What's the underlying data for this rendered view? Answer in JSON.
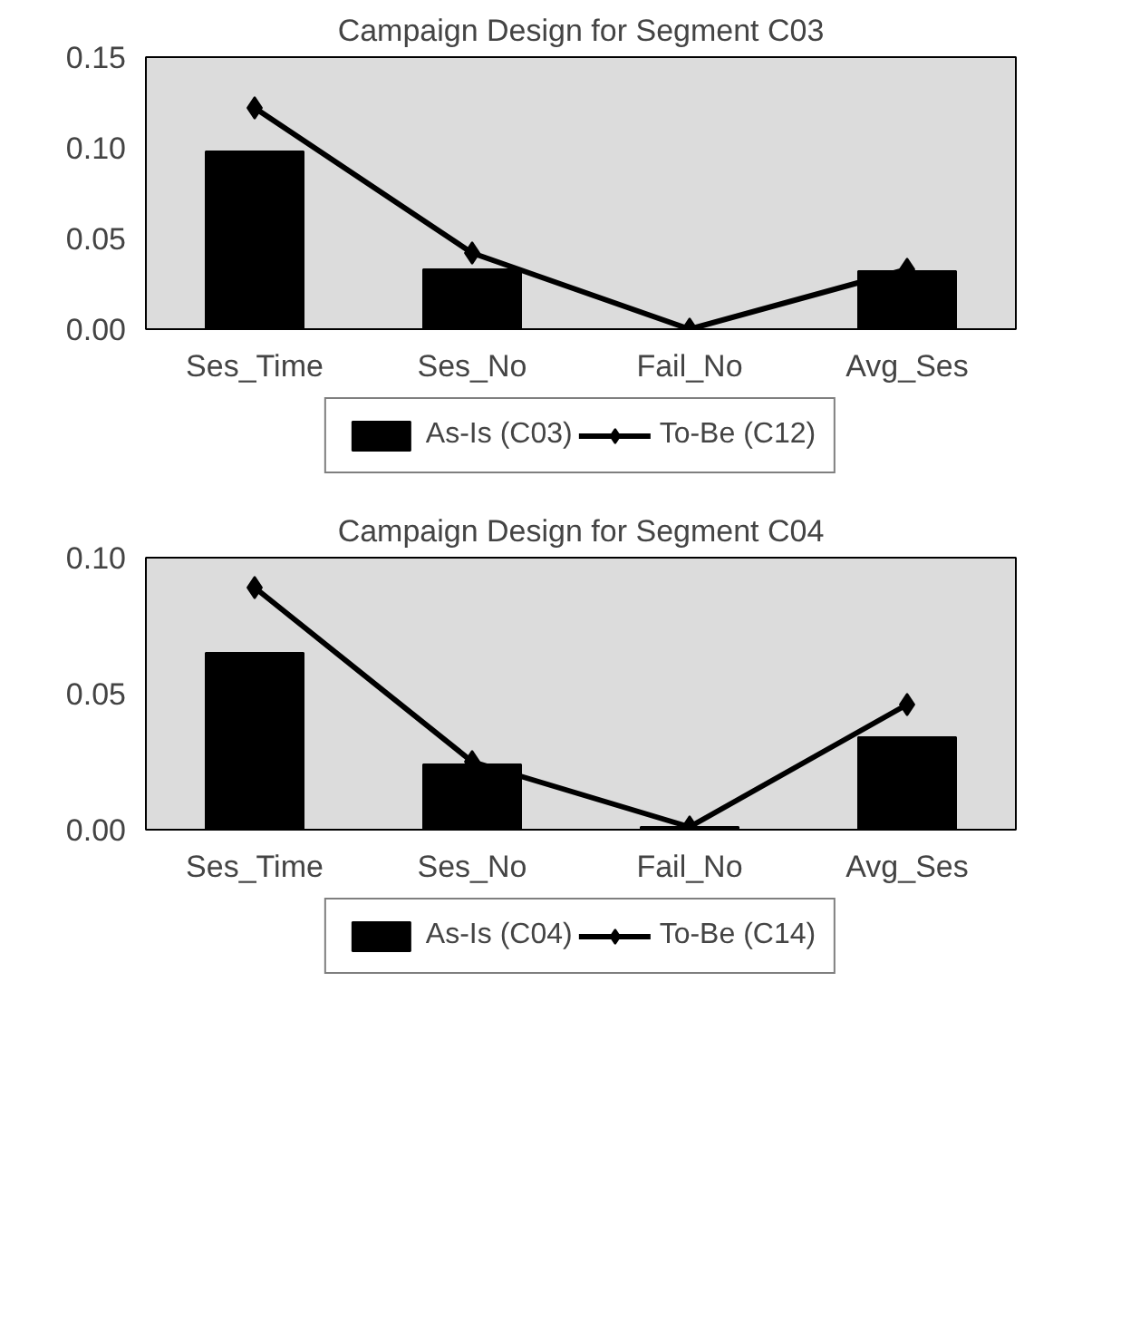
{
  "chart_data": [
    {
      "type": "bar",
      "title": "Campaign Design for Segment C03",
      "categories": [
        "Ses_Time",
        "Ses_No",
        "Fail_No",
        "Avg_Ses"
      ],
      "ylim": [
        0,
        0.15
      ],
      "yticks": [
        {
          "value": 0,
          "label": "0.00"
        },
        {
          "value": 0.05,
          "label": "0.05"
        },
        {
          "value": 0.1,
          "label": "0.10"
        },
        {
          "value": 0.15,
          "label": "0.15"
        }
      ],
      "grid": false,
      "legend": "bottom",
      "marker": "diamond",
      "series": [
        {
          "name": "As-Is (C03)",
          "color": "#000000",
          "values": [
            0.098,
            0.033,
            0.0,
            0.032
          ]
        },
        {
          "name": "To-Be (C12)",
          "type": "line",
          "color": "#000000",
          "values": [
            0.122,
            0.042,
            0.0,
            0.033
          ]
        }
      ]
    },
    {
      "type": "bar",
      "title": "Campaign Design for Segment C04",
      "categories": [
        "Ses_Time",
        "Ses_No",
        "Fail_No",
        "Avg_Ses"
      ],
      "ylim": [
        0,
        0.1
      ],
      "yticks": [
        {
          "value": 0,
          "label": "0.00"
        },
        {
          "value": 0.05,
          "label": "0.05"
        },
        {
          "value": 0.1,
          "label": "0.10"
        }
      ],
      "grid": false,
      "legend": "bottom",
      "marker": "diamond",
      "series": [
        {
          "name": "As-Is (C04)",
          "color": "#000000",
          "values": [
            0.065,
            0.024,
            0.001,
            0.034
          ]
        },
        {
          "name": "To-Be (C14)",
          "type": "line",
          "color": "#000000",
          "values": [
            0.089,
            0.025,
            0.001,
            0.046
          ]
        }
      ]
    }
  ]
}
